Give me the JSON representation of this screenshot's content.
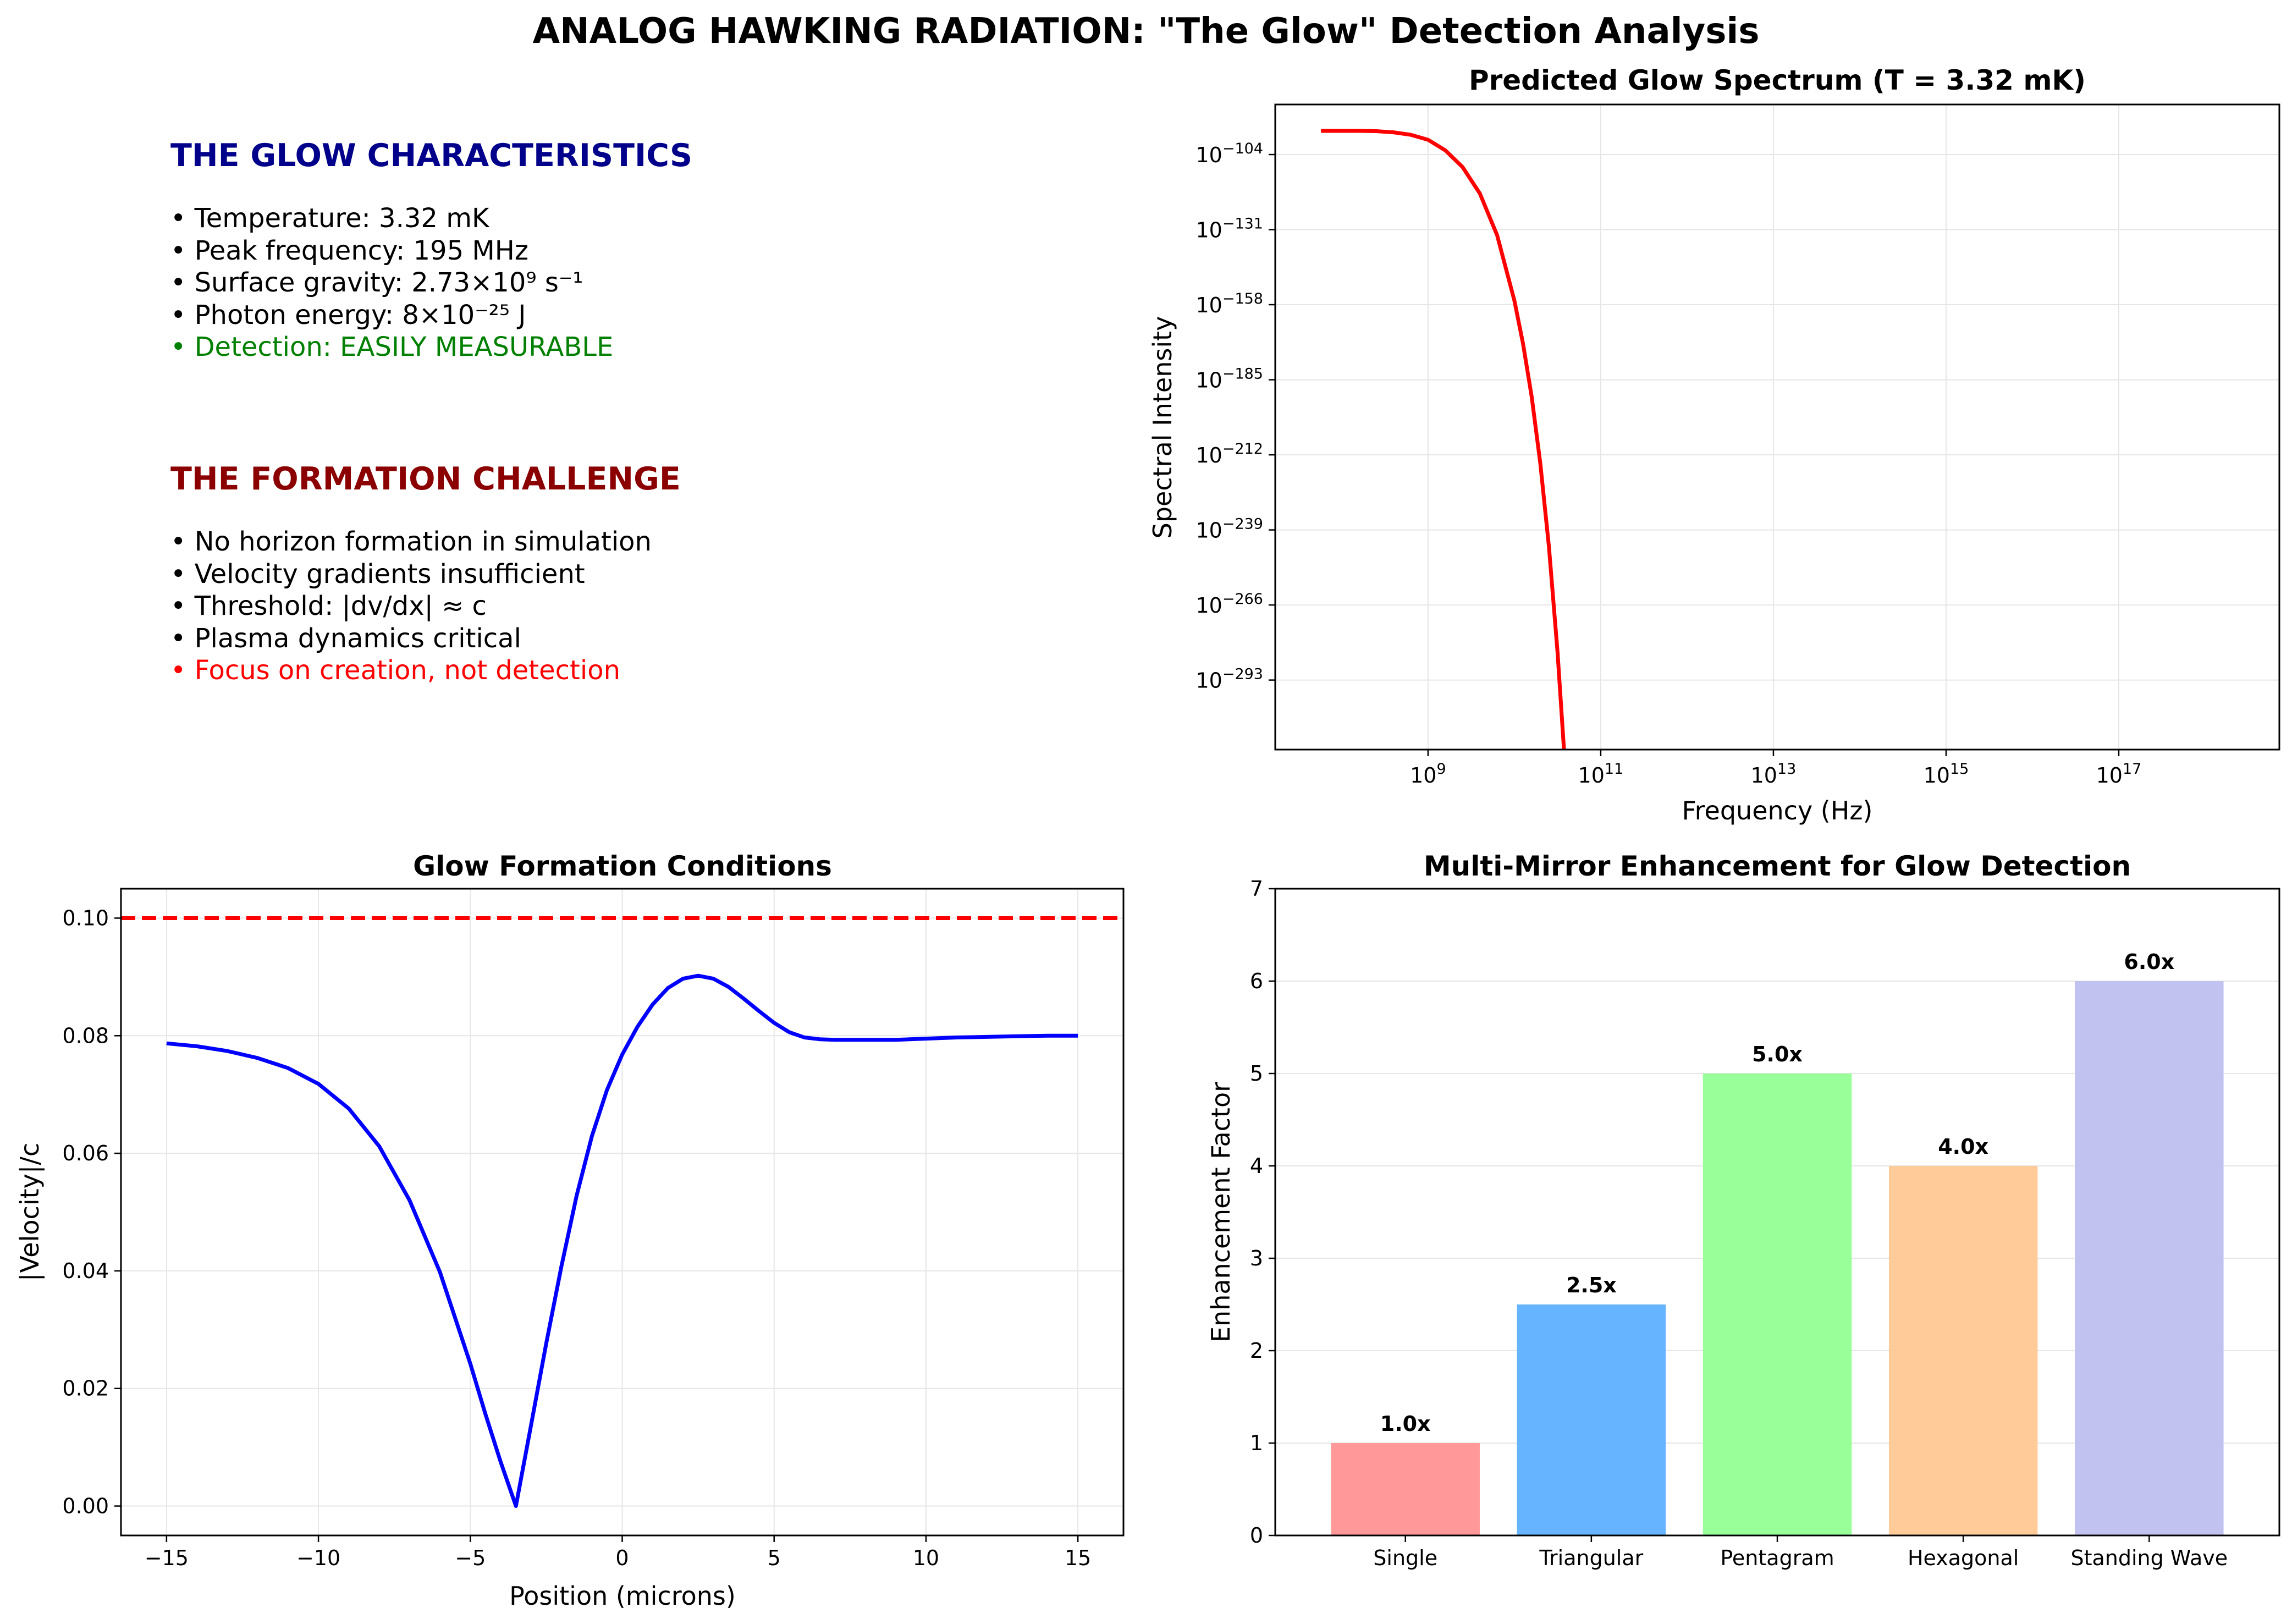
{
  "figure": {
    "suptitle": "ANALOG HAWKING RADIATION: \"The Glow\" Detection Analysis"
  },
  "text_panel": {
    "glow": {
      "heading": "THE GLOW CHARACTERISTICS",
      "heading_color": "#00008b",
      "items": [
        {
          "text": "• Temperature: 3.32 mK",
          "color": "#000000"
        },
        {
          "text": "• Peak frequency: 195 MHz",
          "color": "#000000"
        },
        {
          "text": "• Surface gravity: 2.73×10⁹ s⁻¹",
          "color": "#000000"
        },
        {
          "text": "• Photon energy: 8×10⁻²⁵ J",
          "color": "#000000"
        },
        {
          "text": "• Detection: EASILY MEASURABLE",
          "color": "#008000"
        }
      ]
    },
    "formation": {
      "heading": "THE FORMATION CHALLENGE",
      "heading_color": "#8b0000",
      "items": [
        {
          "text": "• No horizon formation in simulation",
          "color": "#000000"
        },
        {
          "text": "• Velocity gradients insufficient",
          "color": "#000000"
        },
        {
          "text": "• Threshold: |dv/dx| ≈ c",
          "color": "#000000"
        },
        {
          "text": "• Plasma dynamics critical",
          "color": "#000000"
        },
        {
          "text": "• Focus on creation, not detection",
          "color": "#ff0000"
        }
      ]
    }
  },
  "chart_data": [
    {
      "id": "spectrum",
      "type": "line",
      "title": "Predicted Glow Spectrum (T = 3.32 mK)",
      "xlabel": "Frequency (Hz)",
      "ylabel": "Spectral Intensity",
      "xscale": "log",
      "yscale": "log",
      "xlim_log10": [
        7.23,
        18.86
      ],
      "ylim_log10": [
        -318,
        -86
      ],
      "x_ticks": [
        {
          "base": "10",
          "exp": "9",
          "log10": 9
        },
        {
          "base": "10",
          "exp": "11",
          "log10": 11
        },
        {
          "base": "10",
          "exp": "13",
          "log10": 13
        },
        {
          "base": "10",
          "exp": "15",
          "log10": 15
        },
        {
          "base": "10",
          "exp": "17",
          "log10": 17
        }
      ],
      "y_ticks": [
        {
          "base": "10",
          "exp": "−104",
          "log10": -104
        },
        {
          "base": "10",
          "exp": "−131",
          "log10": -131
        },
        {
          "base": "10",
          "exp": "−158",
          "log10": -158
        },
        {
          "base": "10",
          "exp": "−185",
          "log10": -185
        },
        {
          "base": "10",
          "exp": "−212",
          "log10": -212
        },
        {
          "base": "10",
          "exp": "−239",
          "log10": -239
        },
        {
          "base": "10",
          "exp": "−266",
          "log10": -266
        },
        {
          "base": "10",
          "exp": "−293",
          "log10": -293
        }
      ],
      "series": [
        {
          "color": "#ff0000",
          "x_log10": [
            7.76,
            8.0,
            8.2,
            8.4,
            8.6,
            8.8,
            9.0,
            9.2,
            9.4,
            9.6,
            9.8,
            10.0,
            10.1,
            10.2,
            10.3,
            10.4,
            10.5,
            10.6
          ],
          "y_log10": [
            -95.5,
            -95.5,
            -95.5,
            -95.6,
            -96.0,
            -96.9,
            -98.7,
            -102.5,
            -108.5,
            -118.0,
            -133.0,
            -156.5,
            -172.0,
            -191.0,
            -215.0,
            -245.0,
            -283.0,
            -330.0
          ]
        }
      ],
      "grid": true
    },
    {
      "id": "formation",
      "type": "line",
      "title": "Glow Formation Conditions",
      "xlabel": "Position (microns)",
      "ylabel": "|Velocity|/c",
      "xlim": [
        -16.5,
        16.5
      ],
      "ylim": [
        -0.005,
        0.105
      ],
      "x_ticks": [
        {
          "label": "−15",
          "value": -15
        },
        {
          "label": "−10",
          "value": -10
        },
        {
          "label": "−5",
          "value": -5
        },
        {
          "label": "0",
          "value": 0
        },
        {
          "label": "5",
          "value": 5
        },
        {
          "label": "10",
          "value": 10
        },
        {
          "label": "15",
          "value": 15
        }
      ],
      "y_ticks": [
        {
          "label": "0.00",
          "value": 0.0
        },
        {
          "label": "0.02",
          "value": 0.02
        },
        {
          "label": "0.04",
          "value": 0.04
        },
        {
          "label": "0.06",
          "value": 0.06
        },
        {
          "label": "0.08",
          "value": 0.08
        },
        {
          "label": "0.10",
          "value": 0.1
        }
      ],
      "threshold": {
        "y": 0.1,
        "color": "#ff0000",
        "style": "dashed"
      },
      "series": [
        {
          "color": "#0000ff",
          "x": [
            -15,
            -14,
            -13,
            -12,
            -11,
            -10,
            -9,
            -8,
            -7,
            -6,
            -5,
            -4.5,
            -4,
            -3.5,
            -3,
            -2.5,
            -2,
            -1.5,
            -1,
            -0.5,
            0,
            0.5,
            1,
            1.5,
            2,
            2.5,
            3,
            3.5,
            4,
            4.5,
            5,
            5.5,
            6,
            6.5,
            7,
            8,
            9,
            10,
            11,
            12,
            13,
            14,
            15
          ],
          "y": [
            0.0787,
            0.0782,
            0.0774,
            0.0762,
            0.0745,
            0.0718,
            0.0676,
            0.0612,
            0.052,
            0.0398,
            0.0242,
            0.0156,
            0.0075,
            0.0,
            0.0138,
            0.0277,
            0.0408,
            0.0528,
            0.0629,
            0.0708,
            0.0768,
            0.0815,
            0.0853,
            0.0881,
            0.0897,
            0.0902,
            0.0897,
            0.0883,
            0.0863,
            0.0842,
            0.0822,
            0.0806,
            0.0797,
            0.0794,
            0.0793,
            0.0793,
            0.0793,
            0.0795,
            0.0797,
            0.0798,
            0.0799,
            0.08,
            0.08
          ]
        }
      ],
      "grid": true
    },
    {
      "id": "enhancement",
      "type": "bar",
      "title": "Multi-Mirror Enhancement for Glow Detection",
      "xlabel": "",
      "ylabel": "Enhancement Factor",
      "ylim": [
        0,
        7
      ],
      "y_ticks": [
        {
          "label": "0",
          "value": 0
        },
        {
          "label": "1",
          "value": 1
        },
        {
          "label": "2",
          "value": 2
        },
        {
          "label": "3",
          "value": 3
        },
        {
          "label": "4",
          "value": 4
        },
        {
          "label": "5",
          "value": 5
        },
        {
          "label": "6",
          "value": 6
        },
        {
          "label": "7",
          "value": 7
        }
      ],
      "categories": [
        "Single",
        "Triangular",
        "Pentagram",
        "Hexagonal",
        "Standing Wave"
      ],
      "values": [
        1.0,
        2.5,
        5.0,
        4.0,
        6.0
      ],
      "value_labels": [
        "1.0x",
        "2.5x",
        "5.0x",
        "4.0x",
        "6.0x"
      ],
      "colors": [
        "#ff9999",
        "#66b3ff",
        "#99ff99",
        "#ffcc99",
        "#c2c2f0"
      ],
      "grid": true
    }
  ]
}
